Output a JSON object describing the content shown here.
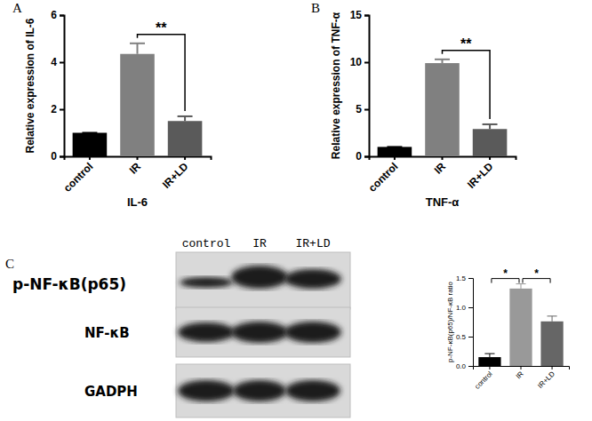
{
  "chart_data": [
    {
      "type": "bar",
      "panel": "A",
      "y_label": "Relative expression of IL-6",
      "x_label": "IL-6",
      "categories": [
        "control",
        "IR",
        "IR+LD"
      ],
      "values": [
        1.0,
        4.35,
        1.5
      ],
      "errors": [
        0,
        0.45,
        0.2
      ],
      "colors": [
        "#000000",
        "#808080",
        "#5a5a5a"
      ],
      "ylim": [
        0,
        6
      ],
      "yticks": [
        0,
        2,
        4,
        6
      ],
      "annotations": [
        {
          "text": "**",
          "between": [
            "IR",
            "IR+LD"
          ]
        }
      ]
    },
    {
      "type": "bar",
      "panel": "B",
      "y_label": "Relative expression of TNF-α",
      "x_label": "TNF-α",
      "categories": [
        "control",
        "IR",
        "IR+LD"
      ],
      "values": [
        1.0,
        9.9,
        2.9
      ],
      "errors": [
        0,
        0.4,
        0.5
      ],
      "colors": [
        "#000000",
        "#808080",
        "#5a5a5a"
      ],
      "ylim": [
        0,
        15
      ],
      "yticks": [
        0,
        5,
        10,
        15
      ],
      "annotations": [
        {
          "text": "**",
          "between": [
            "IR",
            "IR+LD"
          ]
        }
      ]
    },
    {
      "type": "bar",
      "panel": "C",
      "y_label": "p-NF-κB(p65)/NF-κB ratio",
      "categories": [
        "control",
        "IR",
        "IR+LD"
      ],
      "values": [
        0.15,
        1.32,
        0.76
      ],
      "errors": [
        0.06,
        0.08,
        0.09
      ],
      "colors": [
        "#000000",
        "#999999",
        "#666666"
      ],
      "ylim": [
        0,
        1.5
      ],
      "yticks": [
        {
          "value": 0,
          "label": "0.0"
        },
        {
          "value": 0.5,
          "label": "0.5"
        },
        {
          "value": 1,
          "label": "1.0"
        },
        {
          "value": 1.5,
          "label": "1.5"
        }
      ],
      "annotations": [
        {
          "text": "*",
          "between": [
            "control",
            "IR"
          ]
        },
        {
          "text": "*",
          "between": [
            "IR",
            "IR+LD"
          ]
        }
      ]
    }
  ],
  "blot": {
    "lanes": [
      "control",
      "IR",
      "IR+LD"
    ],
    "rows": [
      "p-NF-κB(p65)",
      "NF-κB",
      "GADPH"
    ]
  }
}
